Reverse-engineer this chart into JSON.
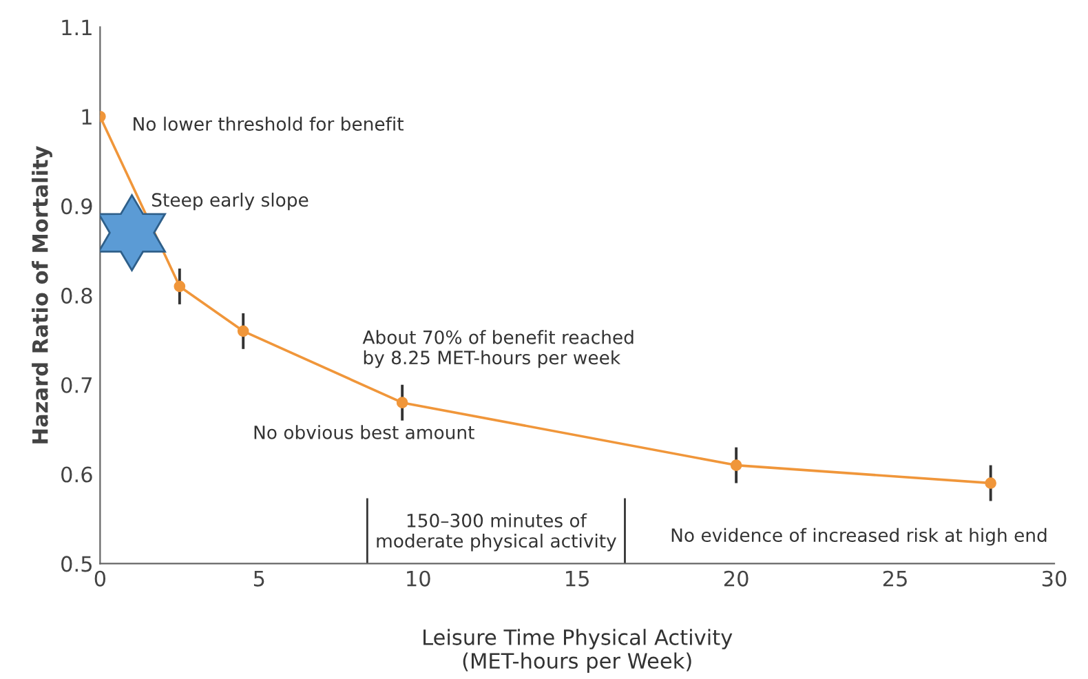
{
  "chart_data": {
    "type": "line",
    "xlabel": "Leisure Time Physical Activity\n(MET-hours per Week)",
    "ylabel": "Hazard Ratio of Mortality",
    "series": [
      {
        "color": "#f0963a",
        "x": [
          0,
          2.5,
          4.5,
          9.5,
          20,
          28
        ],
        "values": [
          1.0,
          0.81,
          0.76,
          0.68,
          0.61,
          0.59
        ],
        "errors": [
          null,
          0.02,
          0.02,
          0.02,
          0.02,
          0.02
        ]
      }
    ],
    "marker": "circle",
    "xlim": [
      0,
      30
    ],
    "xticks": [
      0,
      5,
      10,
      15,
      20,
      25,
      30
    ],
    "ylim": [
      0.5,
      1.1
    ],
    "yticks": [
      0.5,
      0.6,
      0.7,
      0.8,
      0.9,
      1,
      1.1
    ],
    "grid": false,
    "ref_lines": [
      {
        "axis": "x",
        "value": 8.4,
        "label": null,
        "color": "#333333"
      },
      {
        "axis": "x",
        "value": 16.5,
        "label": null,
        "color": "#333333"
      }
    ],
    "annotations": [
      "No lower threshold for benefit",
      "Steep early slope",
      "About 70% of benefit reached\nby 8.25 MET-hours per week",
      "150–300 minutes of\nmoderate physical activity",
      "No obvious best amount",
      "No evidence of increased risk at high end"
    ]
  }
}
